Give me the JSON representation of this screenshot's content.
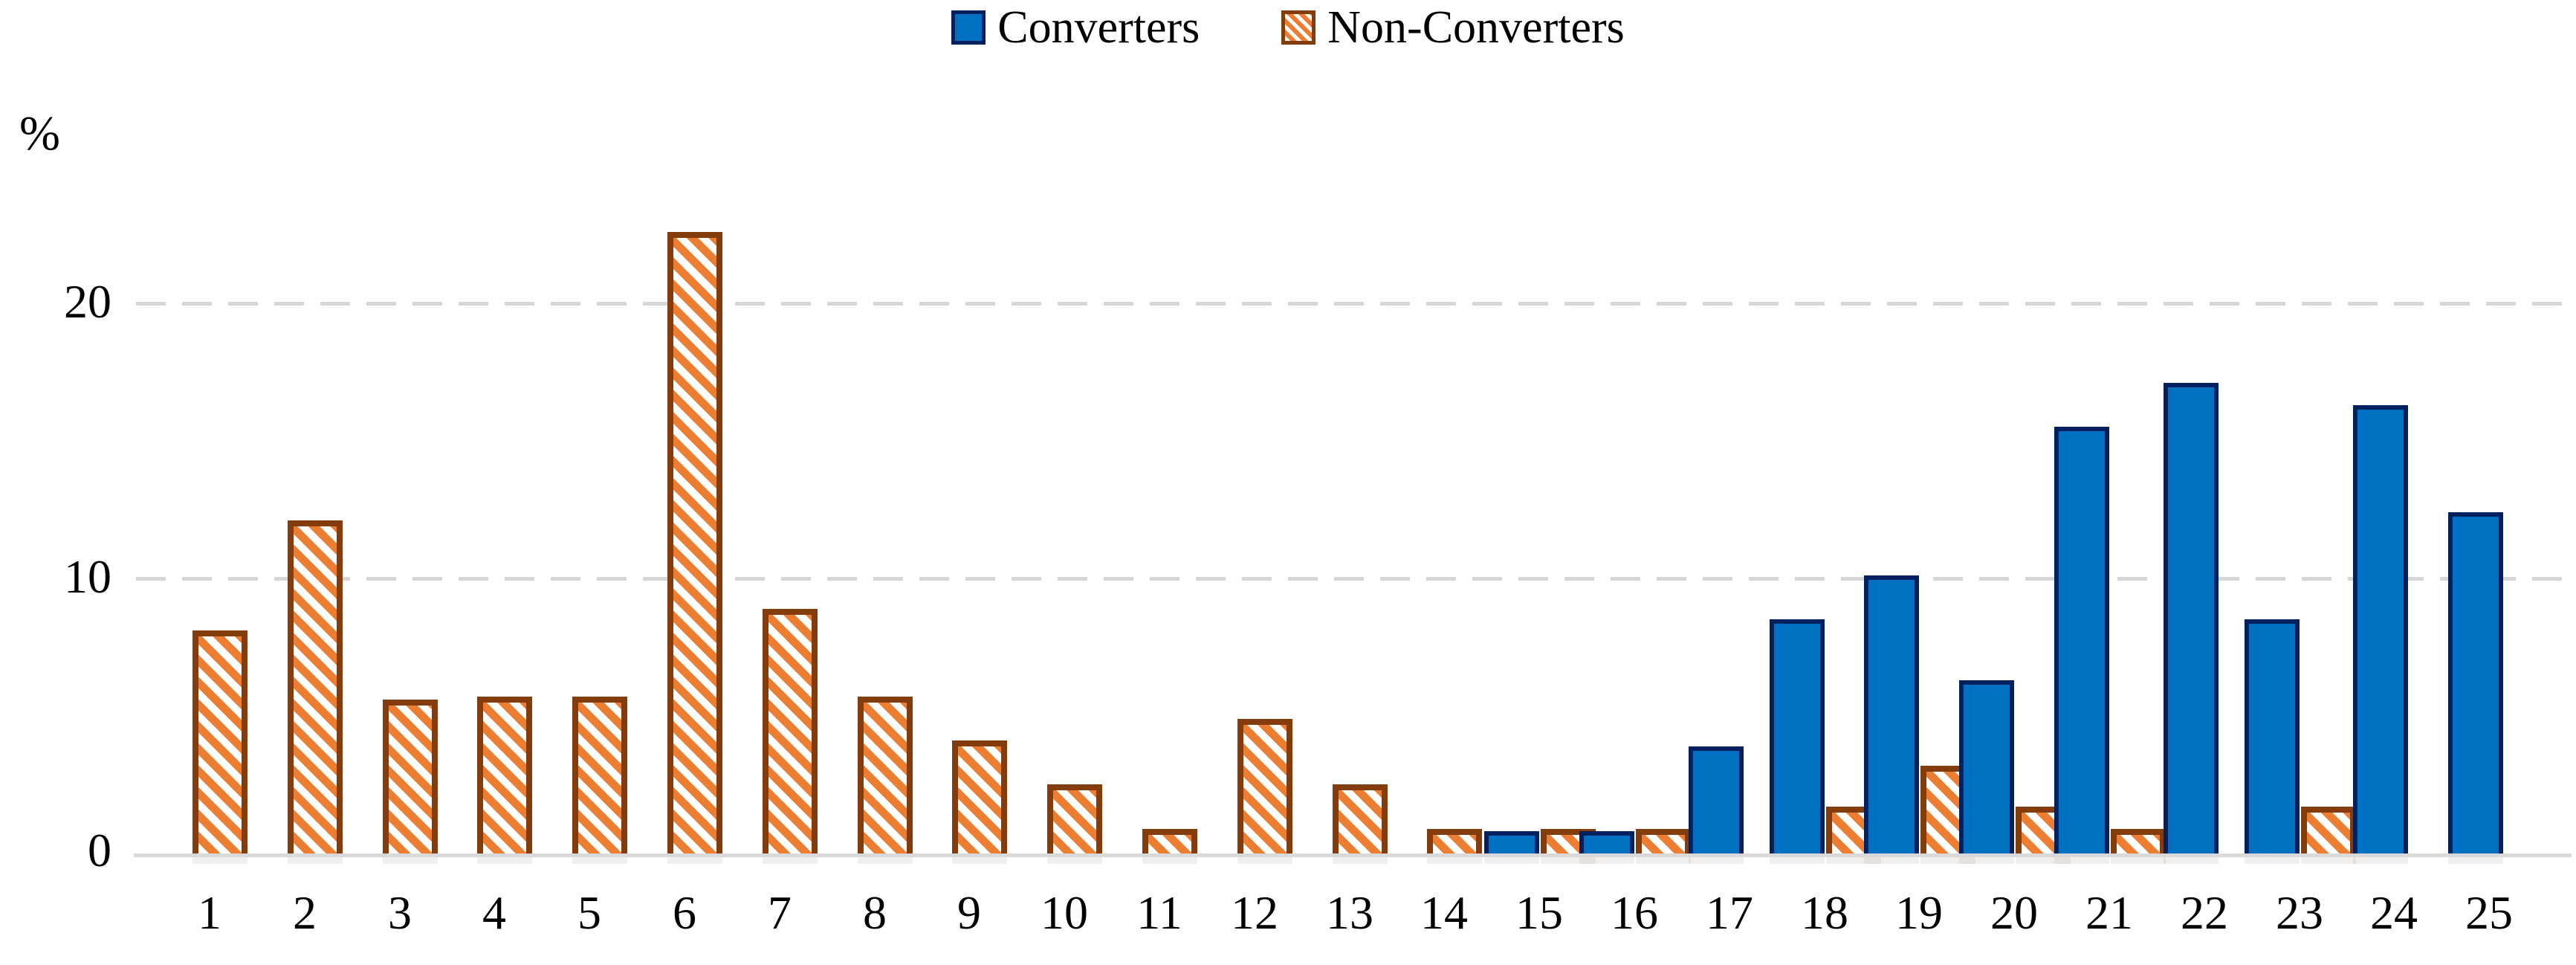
{
  "legend": {
    "items": [
      {
        "label": "Converters",
        "series": "converters"
      },
      {
        "label": "Non-Converters",
        "series": "non_converters"
      }
    ]
  },
  "y_axis": {
    "title": "%",
    "ticks": [
      "0",
      "10",
      "20"
    ]
  },
  "colors": {
    "converters_fill": "#0070C0",
    "converters_border": "#002060",
    "non_converters_stripe": "#ED7D31",
    "non_converters_border": "#843C0C",
    "gridline": "#D6D6D6",
    "axis_line": "#D9D9D9",
    "text": "#000000"
  },
  "chart_data": {
    "type": "bar",
    "title": "",
    "xlabel": "",
    "ylabel": "%",
    "ylim": [
      0,
      25
    ],
    "grid": "horizontal dashed at 10 and 20",
    "legend_position": "top-center",
    "categories": [
      1,
      2,
      3,
      4,
      5,
      6,
      7,
      8,
      9,
      10,
      11,
      12,
      13,
      14,
      15,
      16,
      17,
      18,
      19,
      20,
      21,
      22,
      23,
      24,
      25
    ],
    "series": [
      {
        "name": "Converters",
        "values": [
          null,
          null,
          null,
          null,
          null,
          null,
          null,
          null,
          null,
          null,
          null,
          null,
          null,
          null,
          0.8,
          0.8,
          3.9,
          8.5,
          10.1,
          6.3,
          15.5,
          17.1,
          8.5,
          16.3,
          12.4
        ]
      },
      {
        "name": "Non-Converters",
        "values": [
          8.1,
          12.1,
          5.6,
          5.7,
          5.7,
          22.6,
          8.9,
          5.7,
          4.1,
          2.5,
          0.9,
          4.9,
          2.5,
          0.9,
          0.9,
          0.9,
          null,
          1.7,
          3.2,
          1.7,
          0.9,
          null,
          1.7,
          null,
          null
        ]
      }
    ]
  }
}
